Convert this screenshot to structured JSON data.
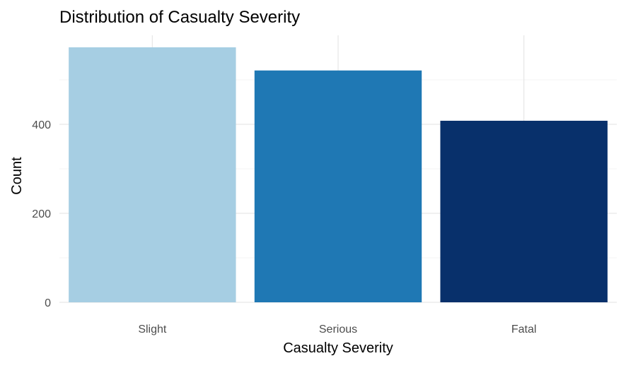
{
  "chart_data": {
    "type": "bar",
    "title": "Distribution of Casualty Severity",
    "xlabel": "Casualty Severity",
    "ylabel": "Count",
    "categories": [
      "Slight",
      "Serious",
      "Fatal"
    ],
    "values": [
      573,
      521,
      408
    ],
    "colors": [
      "#a6cee3",
      "#1f78b4",
      "#08306b"
    ],
    "yticks": [
      0,
      200,
      400
    ],
    "ylim": [
      0,
      600
    ],
    "grid": true,
    "legend": "none"
  }
}
